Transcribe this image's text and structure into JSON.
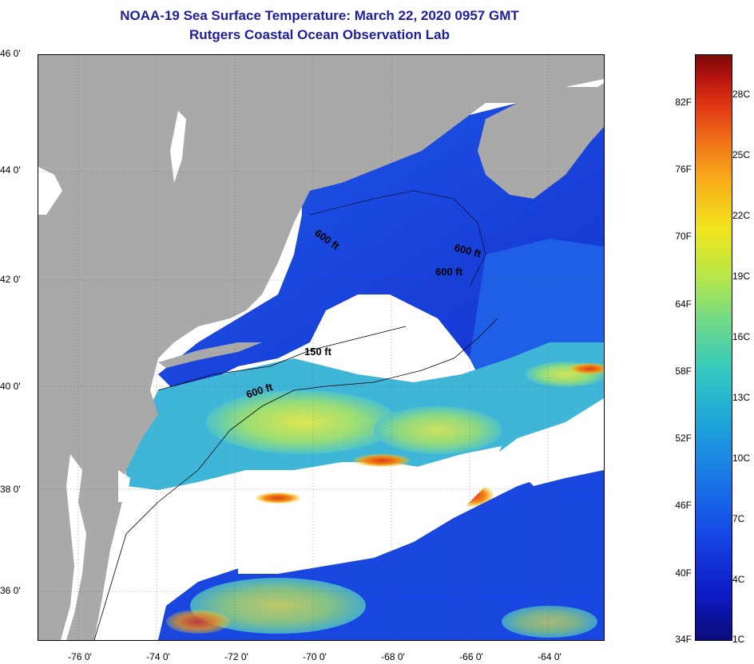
{
  "title_line1": "NOAA-19 Sea Surface Temperature:  March 22, 2020 0957 GMT",
  "title_line2": "Rutgers Coastal Ocean Observation Lab",
  "lat_labels": [
    "46 0'",
    "44 0'",
    "42 0'",
    "40 0'",
    "38 0'",
    "36 0'"
  ],
  "lon_labels": [
    "-76 0'",
    "-74 0'",
    "-72 0'",
    "-70 0'",
    "-68 0'",
    "-66 0'",
    "-64 0'"
  ],
  "contour_labels": [
    "600 ft",
    "600 ft",
    "600 ft",
    "150 ft",
    "600 ft"
  ],
  "colorbar_f": [
    "82F",
    "76F",
    "70F",
    "64F",
    "58F",
    "52F",
    "46F",
    "40F",
    "34F"
  ],
  "colorbar_c": [
    "28C",
    "25C",
    "22C",
    "19C",
    "16C",
    "13C",
    "10C",
    "7C",
    "4C",
    "1C"
  ],
  "colors": {
    "land": "#a9a9a9",
    "cloud": "#ffffff",
    "title": "#1f1f9c",
    "cold_water": "#1a46e0",
    "warm_water": "#8ed870"
  }
}
